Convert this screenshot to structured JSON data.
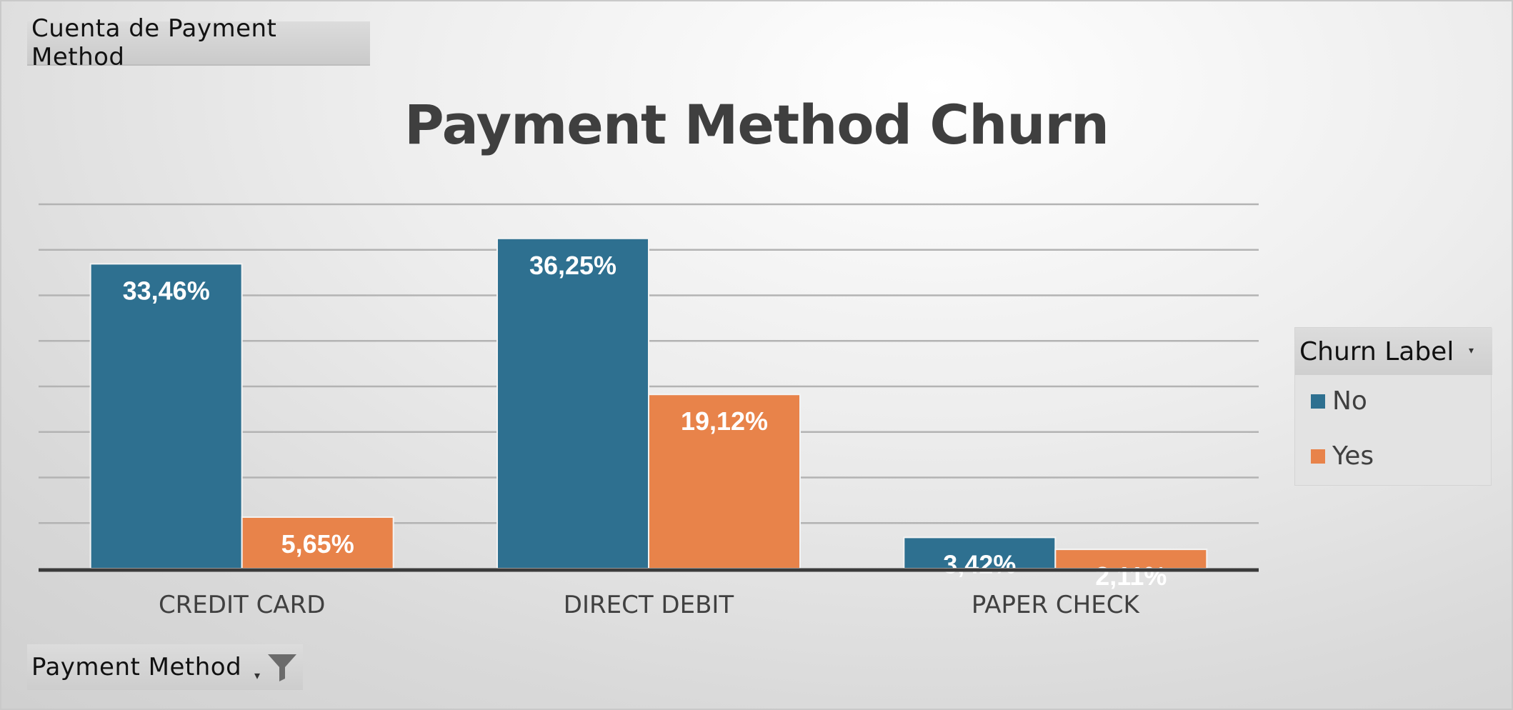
{
  "pivot": {
    "value_field_label": "Cuenta de Payment Method",
    "axis_field_label": "Payment Method",
    "axis_field_dropdown_glyph": "▾",
    "axis_field_icon": "funnel-filter-icon"
  },
  "legend": {
    "title": "Churn Label",
    "dropdown_glyph": "▾",
    "items": [
      {
        "label": "No",
        "color": "#2E7090"
      },
      {
        "label": "Yes",
        "color": "#E8834A"
      }
    ]
  },
  "chart_data": {
    "type": "bar",
    "title": "Payment Method Churn",
    "xlabel": "",
    "ylabel": "",
    "categories": [
      "CREDIT CARD",
      "DIRECT DEBIT",
      "PAPER CHECK"
    ],
    "series": [
      {
        "name": "No",
        "color": "#2E7090",
        "values": [
          33.46,
          36.25,
          3.42
        ],
        "labels": [
          "33,46%",
          "36,25%",
          "3,42%"
        ]
      },
      {
        "name": "Yes",
        "color": "#E8834A",
        "values": [
          5.65,
          19.12,
          2.11
        ],
        "labels": [
          "5,65%",
          "19,12%",
          "2,11%"
        ]
      }
    ],
    "ylim": [
      0,
      40
    ],
    "gridlines": true,
    "gridline_step": 5,
    "y_axis_visible": false,
    "legend_position": "right"
  }
}
